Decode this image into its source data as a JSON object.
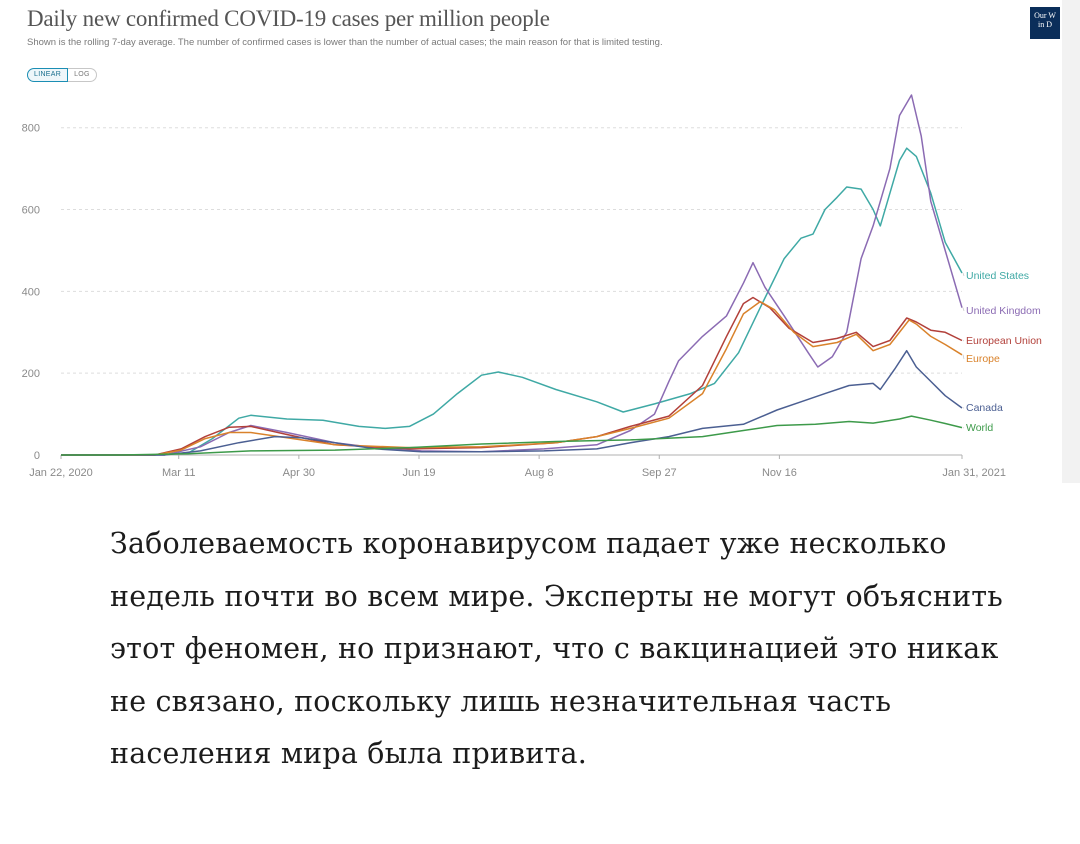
{
  "chart_data": {
    "type": "line",
    "title": "Daily new confirmed COVID-19 cases per million people",
    "subtitle": "Shown is the rolling 7-day average. The number of confirmed cases is lower than the number of actual cases; the main reason for that is limited testing.",
    "xlabel": "",
    "ylabel": "",
    "x_range": [
      "2020-01-22",
      "2021-01-31"
    ],
    "ylim": [
      0,
      880
    ],
    "y_ticks": [
      0,
      200,
      400,
      600,
      800
    ],
    "x_ticks": [
      {
        "date": "2020-01-22",
        "label": "Jan 22, 2020"
      },
      {
        "date": "2020-03-11",
        "label": "Mar 11"
      },
      {
        "date": "2020-04-30",
        "label": "Apr 30"
      },
      {
        "date": "2020-06-19",
        "label": "Jun 19"
      },
      {
        "date": "2020-08-08",
        "label": "Aug 8"
      },
      {
        "date": "2020-09-27",
        "label": "Sep 27"
      },
      {
        "date": "2020-11-16",
        "label": "Nov 16"
      },
      {
        "date": "2021-01-31",
        "label": "Jan 31, 2021"
      }
    ],
    "grid": "horizontal-dashed",
    "legend": "labels at right end of lines",
    "scale_buttons": {
      "linear": "LINEAR",
      "log": "LOG",
      "active": "linear"
    },
    "series": [
      {
        "name": "United States",
        "color": "#3fa9a5",
        "points": [
          [
            "2020-01-22",
            0
          ],
          [
            "2020-03-01",
            0
          ],
          [
            "2020-03-15",
            5
          ],
          [
            "2020-03-25",
            40
          ],
          [
            "2020-04-05",
            90
          ],
          [
            "2020-04-10",
            97
          ],
          [
            "2020-04-25",
            88
          ],
          [
            "2020-05-10",
            85
          ],
          [
            "2020-05-25",
            70
          ],
          [
            "2020-06-05",
            65
          ],
          [
            "2020-06-15",
            70
          ],
          [
            "2020-06-25",
            100
          ],
          [
            "2020-07-05",
            150
          ],
          [
            "2020-07-15",
            195
          ],
          [
            "2020-07-22",
            203
          ],
          [
            "2020-08-01",
            190
          ],
          [
            "2020-08-15",
            160
          ],
          [
            "2020-09-01",
            130
          ],
          [
            "2020-09-12",
            105
          ],
          [
            "2020-09-25",
            125
          ],
          [
            "2020-10-10",
            150
          ],
          [
            "2020-10-20",
            175
          ],
          [
            "2020-10-30",
            250
          ],
          [
            "2020-11-08",
            360
          ],
          [
            "2020-11-18",
            480
          ],
          [
            "2020-11-25",
            530
          ],
          [
            "2020-11-30",
            540
          ],
          [
            "2020-12-05",
            600
          ],
          [
            "2020-12-10",
            630
          ],
          [
            "2020-12-14",
            655
          ],
          [
            "2020-12-20",
            650
          ],
          [
            "2020-12-25",
            600
          ],
          [
            "2020-12-28",
            560
          ],
          [
            "2021-01-01",
            640
          ],
          [
            "2021-01-05",
            720
          ],
          [
            "2021-01-08",
            750
          ],
          [
            "2021-01-12",
            730
          ],
          [
            "2021-01-18",
            640
          ],
          [
            "2021-01-24",
            520
          ],
          [
            "2021-01-31",
            445
          ]
        ]
      },
      {
        "name": "United Kingdom",
        "color": "#8b6bb3",
        "points": [
          [
            "2020-01-22",
            0
          ],
          [
            "2020-03-05",
            0
          ],
          [
            "2020-03-20",
            20
          ],
          [
            "2020-04-01",
            55
          ],
          [
            "2020-04-10",
            72
          ],
          [
            "2020-04-25",
            55
          ],
          [
            "2020-05-15",
            30
          ],
          [
            "2020-06-05",
            15
          ],
          [
            "2020-06-20",
            10
          ],
          [
            "2020-07-15",
            8
          ],
          [
            "2020-08-10",
            15
          ],
          [
            "2020-09-01",
            25
          ],
          [
            "2020-09-15",
            60
          ],
          [
            "2020-09-25",
            100
          ],
          [
            "2020-10-01",
            180
          ],
          [
            "2020-10-05",
            230
          ],
          [
            "2020-10-15",
            290
          ],
          [
            "2020-10-25",
            340
          ],
          [
            "2020-11-01",
            420
          ],
          [
            "2020-11-05",
            470
          ],
          [
            "2020-11-10",
            410
          ],
          [
            "2020-11-18",
            340
          ],
          [
            "2020-11-28",
            250
          ],
          [
            "2020-12-02",
            215
          ],
          [
            "2020-12-08",
            240
          ],
          [
            "2020-12-14",
            300
          ],
          [
            "2020-12-20",
            480
          ],
          [
            "2020-12-25",
            560
          ],
          [
            "2021-01-01",
            700
          ],
          [
            "2021-01-05",
            830
          ],
          [
            "2021-01-10",
            880
          ],
          [
            "2021-01-14",
            780
          ],
          [
            "2021-01-18",
            620
          ],
          [
            "2021-01-24",
            500
          ],
          [
            "2021-01-31",
            360
          ]
        ]
      },
      {
        "name": "European Union",
        "color": "#b2403a",
        "points": [
          [
            "2020-01-22",
            0
          ],
          [
            "2020-03-01",
            0
          ],
          [
            "2020-03-12",
            15
          ],
          [
            "2020-03-22",
            45
          ],
          [
            "2020-04-01",
            68
          ],
          [
            "2020-04-10",
            70
          ],
          [
            "2020-04-25",
            50
          ],
          [
            "2020-05-15",
            25
          ],
          [
            "2020-06-15",
            15
          ],
          [
            "2020-07-15",
            18
          ],
          [
            "2020-08-15",
            30
          ],
          [
            "2020-09-01",
            45
          ],
          [
            "2020-09-15",
            70
          ],
          [
            "2020-10-01",
            95
          ],
          [
            "2020-10-15",
            170
          ],
          [
            "2020-10-25",
            290
          ],
          [
            "2020-11-01",
            370
          ],
          [
            "2020-11-05",
            385
          ],
          [
            "2020-11-12",
            360
          ],
          [
            "2020-11-20",
            310
          ],
          [
            "2020-11-30",
            275
          ],
          [
            "2020-12-10",
            285
          ],
          [
            "2020-12-18",
            300
          ],
          [
            "2020-12-25",
            265
          ],
          [
            "2021-01-01",
            280
          ],
          [
            "2021-01-08",
            335
          ],
          [
            "2021-01-12",
            325
          ],
          [
            "2021-01-18",
            305
          ],
          [
            "2021-01-24",
            300
          ],
          [
            "2021-01-31",
            280
          ]
        ]
      },
      {
        "name": "Europe",
        "color": "#d9822b",
        "points": [
          [
            "2020-01-22",
            0
          ],
          [
            "2020-03-01",
            0
          ],
          [
            "2020-03-12",
            12
          ],
          [
            "2020-03-22",
            40
          ],
          [
            "2020-04-01",
            55
          ],
          [
            "2020-04-10",
            55
          ],
          [
            "2020-04-25",
            42
          ],
          [
            "2020-05-15",
            25
          ],
          [
            "2020-06-15",
            18
          ],
          [
            "2020-07-15",
            20
          ],
          [
            "2020-08-15",
            30
          ],
          [
            "2020-09-01",
            45
          ],
          [
            "2020-09-15",
            65
          ],
          [
            "2020-10-01",
            90
          ],
          [
            "2020-10-15",
            150
          ],
          [
            "2020-10-25",
            260
          ],
          [
            "2020-11-01",
            345
          ],
          [
            "2020-11-08",
            375
          ],
          [
            "2020-11-14",
            355
          ],
          [
            "2020-11-22",
            300
          ],
          [
            "2020-11-30",
            265
          ],
          [
            "2020-12-10",
            275
          ],
          [
            "2020-12-18",
            295
          ],
          [
            "2020-12-25",
            255
          ],
          [
            "2021-01-01",
            270
          ],
          [
            "2021-01-09",
            330
          ],
          [
            "2021-01-12",
            320
          ],
          [
            "2021-01-18",
            290
          ],
          [
            "2021-01-24",
            270
          ],
          [
            "2021-01-31",
            245
          ]
        ]
      },
      {
        "name": "Canada",
        "color": "#4b5f92",
        "points": [
          [
            "2020-01-22",
            0
          ],
          [
            "2020-03-05",
            0
          ],
          [
            "2020-03-20",
            10
          ],
          [
            "2020-04-05",
            30
          ],
          [
            "2020-04-20",
            45
          ],
          [
            "2020-05-01",
            42
          ],
          [
            "2020-05-15",
            30
          ],
          [
            "2020-06-01",
            15
          ],
          [
            "2020-06-20",
            8
          ],
          [
            "2020-07-15",
            8
          ],
          [
            "2020-08-10",
            10
          ],
          [
            "2020-09-01",
            15
          ],
          [
            "2020-09-15",
            30
          ],
          [
            "2020-10-01",
            45
          ],
          [
            "2020-10-15",
            65
          ],
          [
            "2020-11-01",
            75
          ],
          [
            "2020-11-15",
            110
          ],
          [
            "2020-11-25",
            130
          ],
          [
            "2020-12-05",
            150
          ],
          [
            "2020-12-15",
            170
          ],
          [
            "2020-12-25",
            175
          ],
          [
            "2020-12-28",
            160
          ],
          [
            "2021-01-03",
            210
          ],
          [
            "2021-01-08",
            255
          ],
          [
            "2021-01-12",
            215
          ],
          [
            "2021-01-18",
            180
          ],
          [
            "2021-01-24",
            145
          ],
          [
            "2021-01-31",
            115
          ]
        ]
      },
      {
        "name": "World",
        "color": "#3d9a4a",
        "points": [
          [
            "2020-01-22",
            0
          ],
          [
            "2020-02-15",
            0
          ],
          [
            "2020-03-15",
            3
          ],
          [
            "2020-04-10",
            10
          ],
          [
            "2020-05-15",
            12
          ],
          [
            "2020-06-15",
            18
          ],
          [
            "2020-07-15",
            27
          ],
          [
            "2020-08-15",
            33
          ],
          [
            "2020-09-15",
            37
          ],
          [
            "2020-10-15",
            45
          ],
          [
            "2020-11-01",
            60
          ],
          [
            "2020-11-15",
            72
          ],
          [
            "2020-12-01",
            75
          ],
          [
            "2020-12-15",
            82
          ],
          [
            "2020-12-25",
            78
          ],
          [
            "2021-01-05",
            88
          ],
          [
            "2021-01-10",
            95
          ],
          [
            "2021-01-18",
            85
          ],
          [
            "2021-01-24",
            77
          ],
          [
            "2021-01-31",
            67
          ]
        ]
      }
    ]
  },
  "logo": {
    "line1": "Our W",
    "line2": "in D"
  },
  "caption": "Заболеваемость коронавирусом падает уже несколько недель почти во всем мире. Эксперты не могут объяснить этот феномен, но признают, что с вакцинацией это никак не связано, поскольку лишь незначительная часть населения мира была привита."
}
